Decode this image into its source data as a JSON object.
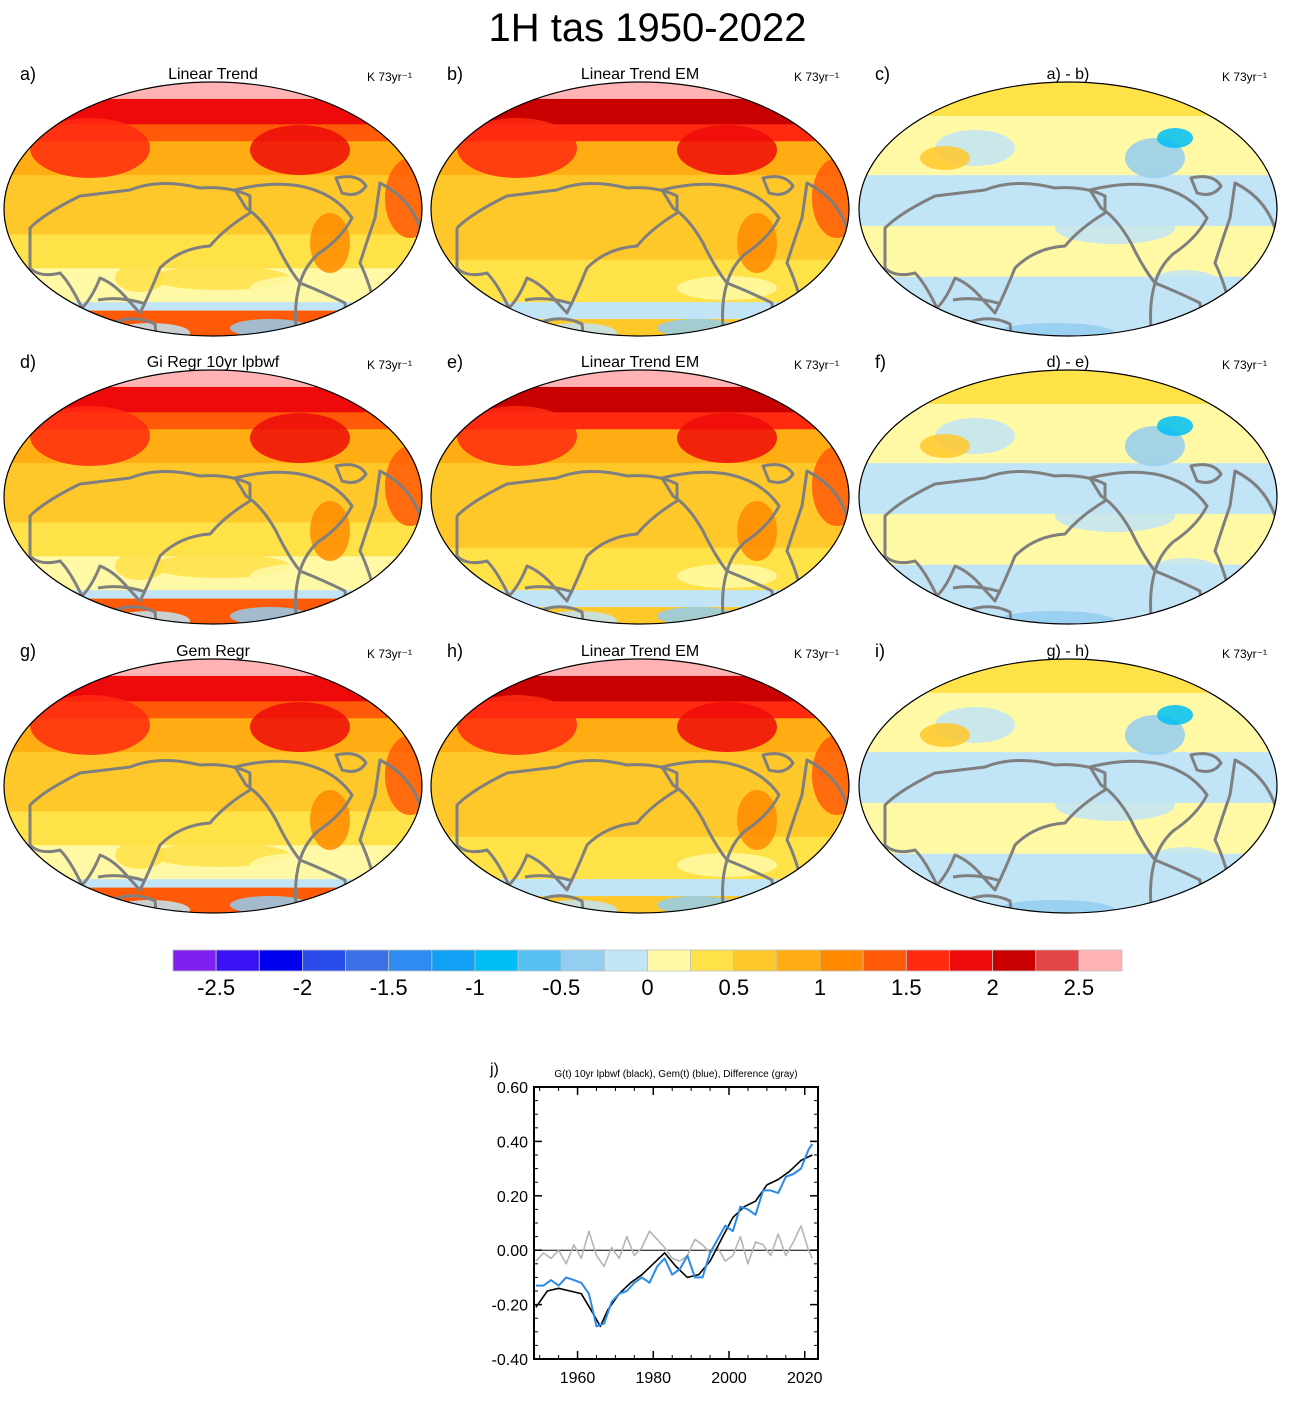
{
  "title": "1H tas 1950-2022",
  "colors": {
    "levels": [
      "#7f1ff0",
      "#3a12f5",
      "#0000ee",
      "#2a4cea",
      "#3b70e6",
      "#2f8bf2",
      "#12a0f5",
      "#00bff6",
      "#56c2f3",
      "#93cdef",
      "#c1e4f6",
      "#fff9a6",
      "#ffe248",
      "#ffc82a",
      "#ffad12",
      "#ff8a00",
      "#ff5a08",
      "#ff2a10",
      "#ee0a0a",
      "#c80000",
      "#e24545",
      "#ffb3b5"
    ],
    "coast": "#7f7f7f",
    "ocean_base": "#ffc12e"
  },
  "panels": [
    {
      "label": "a)",
      "title": "Linear Trend",
      "units": "K 73yr⁻¹",
      "kind": "total"
    },
    {
      "label": "b)",
      "title": "Linear Trend EM",
      "units": "K 73yr⁻¹",
      "kind": "em"
    },
    {
      "label": "c)",
      "title": "a) - b)",
      "units": "K 73yr⁻¹",
      "kind": "diff"
    },
    {
      "label": "d)",
      "title": "Gi Regr 10yr lpbwf",
      "units": "K 73yr⁻¹",
      "kind": "total"
    },
    {
      "label": "e)",
      "title": "Linear Trend EM",
      "units": "K 73yr⁻¹",
      "kind": "em"
    },
    {
      "label": "f)",
      "title": "d) - e)",
      "units": "K 73yr⁻¹",
      "kind": "diff"
    },
    {
      "label": "g)",
      "title": "Gem Regr",
      "units": "K 73yr⁻¹",
      "kind": "total"
    },
    {
      "label": "h)",
      "title": "Linear Trend EM",
      "units": "K 73yr⁻¹",
      "kind": "em"
    },
    {
      "label": "i)",
      "title": "g) - h)",
      "units": "K 73yr⁻¹",
      "kind": "diff"
    }
  ],
  "colorbar": {
    "tick_labels": [
      "-2.5",
      "-2",
      "-1.5",
      "-1",
      "-0.5",
      "0",
      "0.5",
      "1",
      "1.5",
      "2",
      "2.5"
    ],
    "range": [
      -2.75,
      2.75
    ],
    "interval": 0.25
  },
  "chart_data": {
    "type": "line",
    "label": "j)",
    "title": "G(t)  10yr lpbwf (black), Gem(t) (blue), Difference (gray)",
    "xlim": [
      1948.5,
      2023.5
    ],
    "ylim": [
      -0.4,
      0.6
    ],
    "x_ticks": [
      1960,
      1980,
      2000,
      2020
    ],
    "y_ticks": [
      "0.60",
      "0.40",
      "0.20",
      "0.00",
      "-0.20",
      "-0.40"
    ],
    "series": [
      {
        "color": "#000000",
        "x": [
          1949,
          1952,
          1955,
          1958,
          1961,
          1964,
          1966,
          1968,
          1971,
          1974,
          1977,
          1980,
          1983,
          1986,
          1989,
          1992,
          1995,
          1998,
          2001,
          2004,
          2007,
          2010,
          2013,
          2016,
          2019,
          2022
        ],
        "y": [
          -0.21,
          -0.15,
          -0.14,
          -0.15,
          -0.16,
          -0.23,
          -0.28,
          -0.22,
          -0.16,
          -0.12,
          -0.09,
          -0.05,
          -0.01,
          -0.06,
          -0.1,
          -0.09,
          -0.04,
          0.04,
          0.12,
          0.16,
          0.18,
          0.24,
          0.26,
          0.29,
          0.33,
          0.35
        ]
      },
      {
        "color": "#2b8ae6",
        "x": [
          1949,
          1951,
          1953,
          1955,
          1957,
          1959,
          1961,
          1963,
          1965,
          1967,
          1969,
          1971,
          1973,
          1975,
          1977,
          1979,
          1981,
          1983,
          1985,
          1987,
          1989,
          1991,
          1993,
          1995,
          1997,
          1999,
          2001,
          2003,
          2005,
          2007,
          2009,
          2011,
          2013,
          2015,
          2017,
          2019,
          2021,
          2022
        ],
        "y": [
          -0.13,
          -0.13,
          -0.11,
          -0.13,
          -0.1,
          -0.11,
          -0.12,
          -0.16,
          -0.28,
          -0.27,
          -0.19,
          -0.16,
          -0.15,
          -0.12,
          -0.1,
          -0.12,
          -0.06,
          -0.03,
          -0.09,
          -0.07,
          -0.02,
          -0.1,
          -0.1,
          -0.01,
          0.04,
          0.09,
          0.07,
          0.16,
          0.15,
          0.13,
          0.22,
          0.22,
          0.21,
          0.27,
          0.28,
          0.3,
          0.37,
          0.39
        ]
      },
      {
        "color": "#b5b5b5",
        "x": [
          1949,
          1951,
          1953,
          1955,
          1957,
          1959,
          1961,
          1963,
          1965,
          1967,
          1969,
          1971,
          1973,
          1975,
          1977,
          1979,
          1981,
          1983,
          1985,
          1987,
          1989,
          1991,
          1993,
          1995,
          1997,
          1999,
          2001,
          2003,
          2005,
          2007,
          2009,
          2011,
          2013,
          2015,
          2017,
          2019,
          2021,
          2022
        ],
        "y": [
          -0.04,
          -0.01,
          -0.03,
          0.0,
          -0.05,
          0.02,
          -0.03,
          0.07,
          -0.02,
          -0.06,
          0.01,
          -0.03,
          0.05,
          -0.02,
          0.01,
          0.07,
          0.04,
          0.01,
          -0.03,
          -0.04,
          -0.02,
          0.04,
          0.02,
          -0.01,
          0.01,
          -0.04,
          -0.02,
          0.05,
          -0.05,
          0.03,
          0.02,
          -0.02,
          0.06,
          -0.02,
          0.03,
          0.09,
          0.0,
          -0.03
        ]
      }
    ]
  }
}
